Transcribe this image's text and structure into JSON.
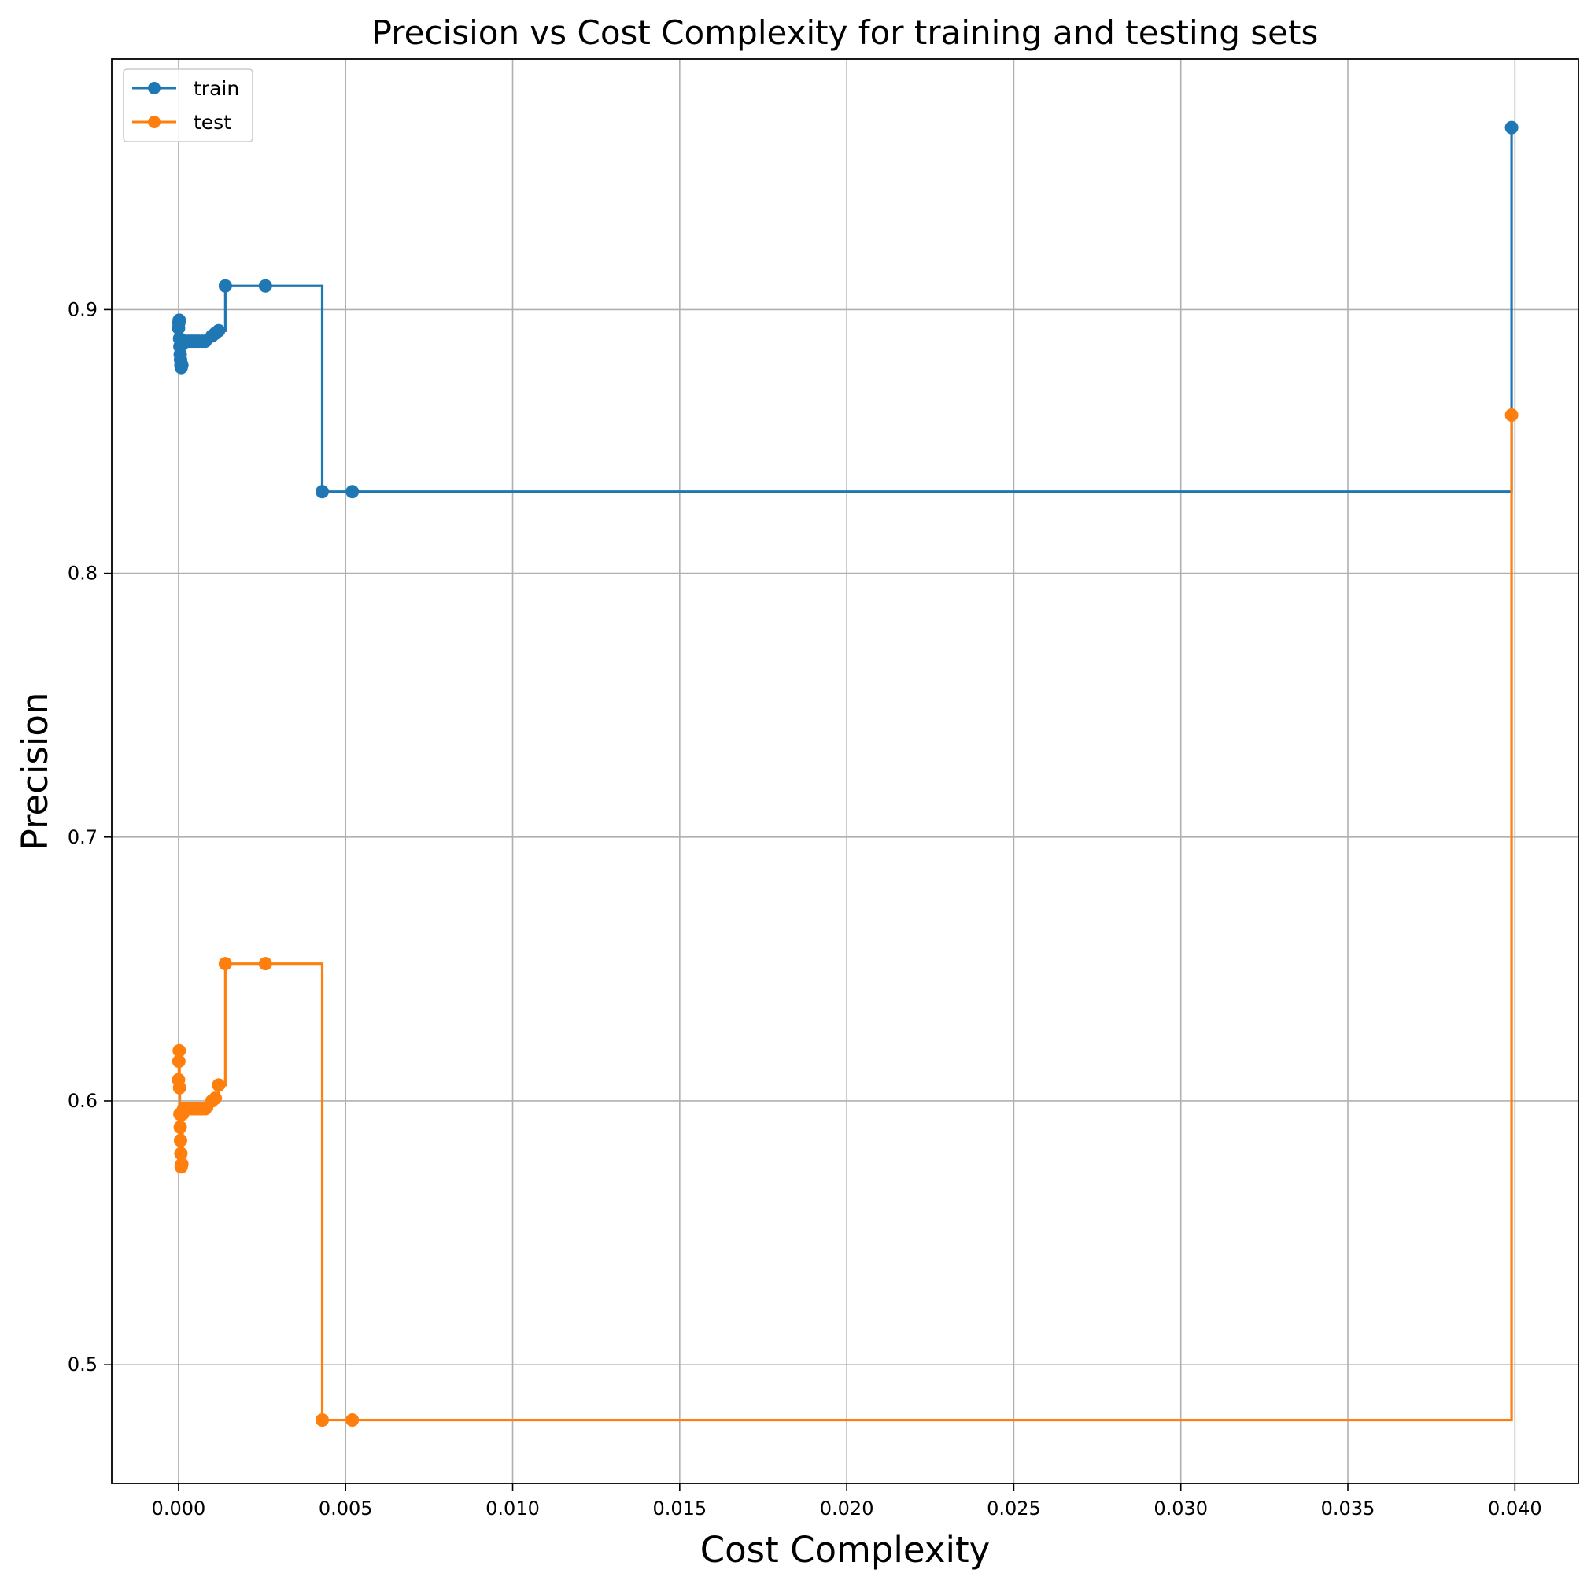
{
  "chart_data": {
    "type": "line",
    "title": "Precision vs Cost Complexity for training and testing sets",
    "xlabel": "Cost Complexity",
    "ylabel": "Precision",
    "xlim": [
      -0.002,
      0.0419
    ],
    "ylim": [
      0.455,
      0.995
    ],
    "xticks": [
      0.0,
      0.005,
      0.01,
      0.015,
      0.02,
      0.025,
      0.03,
      0.035,
      0.04
    ],
    "xtick_labels": [
      "0.000",
      "0.005",
      "0.010",
      "0.015",
      "0.020",
      "0.025",
      "0.030",
      "0.035",
      "0.040"
    ],
    "yticks": [
      0.5,
      0.6,
      0.7,
      0.8,
      0.9
    ],
    "ytick_labels": [
      "0.5",
      "0.6",
      "0.7",
      "0.8",
      "0.9"
    ],
    "grid": true,
    "drawstyle": "steps-post",
    "marker": "circle",
    "legend_position": "upper-left",
    "series": [
      {
        "name": "train",
        "color": "#1f77b4",
        "x": [
          0.0,
          1e-05,
          2e-05,
          3e-05,
          4e-05,
          5e-05,
          6e-05,
          7e-05,
          8e-05,
          0.0001,
          0.00012,
          0.00015,
          0.0002,
          0.0003,
          0.0004,
          0.0005,
          0.0006,
          0.0007,
          0.0008,
          0.001,
          0.0011,
          0.0012,
          0.0014,
          0.0026,
          0.0043,
          0.0052,
          0.0399
        ],
        "y": [
          0.893,
          0.895,
          0.896,
          0.889,
          0.886,
          0.883,
          0.881,
          0.879,
          0.878,
          0.879,
          0.887,
          0.888,
          0.888,
          0.888,
          0.888,
          0.888,
          0.888,
          0.888,
          0.888,
          0.89,
          0.891,
          0.892,
          0.909,
          0.909,
          0.831,
          0.831,
          0.969
        ]
      },
      {
        "name": "test",
        "color": "#ff7f0e",
        "x": [
          0.0,
          1e-05,
          2e-05,
          3e-05,
          4e-05,
          5e-05,
          6e-05,
          7e-05,
          8e-05,
          0.0001,
          0.00012,
          0.00015,
          0.0002,
          0.0003,
          0.0004,
          0.0005,
          0.0006,
          0.0007,
          0.0008,
          0.001,
          0.0011,
          0.0012,
          0.0014,
          0.0026,
          0.0043,
          0.0052,
          0.0399
        ],
        "y": [
          0.608,
          0.615,
          0.619,
          0.605,
          0.595,
          0.59,
          0.585,
          0.58,
          0.575,
          0.576,
          0.595,
          0.597,
          0.597,
          0.597,
          0.597,
          0.597,
          0.597,
          0.597,
          0.597,
          0.6,
          0.601,
          0.606,
          0.652,
          0.652,
          0.479,
          0.479,
          0.86
        ]
      }
    ]
  }
}
